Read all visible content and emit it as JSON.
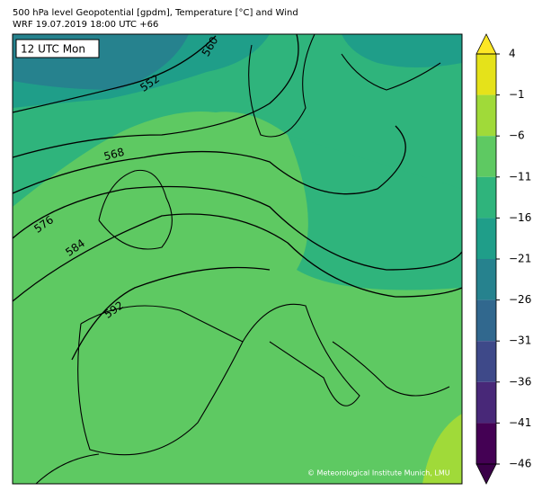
{
  "header": {
    "title_lines": [
      "500 hPa level Geopotential [gpdm], Temperature [°C] and Wind",
      "WRF 19.07.2019 18:00 UTC +66"
    ]
  },
  "map": {
    "time_label": "12 UTC Mon",
    "contour_labels": [
      "552",
      "560",
      "568",
      "576",
      "584",
      "592"
    ],
    "credit": "© Meteorological Institute Munich, LMU"
  },
  "colorbar": {
    "lim": [
      -46,
      4
    ],
    "ticks": [
      {
        "value": 4,
        "label": "4"
      },
      {
        "value": -1,
        "label": "−1"
      },
      {
        "value": -6,
        "label": "−6"
      },
      {
        "value": -11,
        "label": "−11"
      },
      {
        "value": -16,
        "label": "−16"
      },
      {
        "value": -21,
        "label": "−21"
      },
      {
        "value": -26,
        "label": "−26"
      },
      {
        "value": -31,
        "label": "−31"
      },
      {
        "value": -36,
        "label": "−36"
      },
      {
        "value": -41,
        "label": "−41"
      },
      {
        "value": -46,
        "label": "−46"
      }
    ],
    "colors": [
      "#e5e21a",
      "#a0da39",
      "#5ec962",
      "#2fb47c",
      "#1f9e89",
      "#26828e",
      "#31688e",
      "#3e4989",
      "#482878",
      "#440154"
    ],
    "over_color": "#fde725",
    "under_color": "#3a0048"
  }
}
